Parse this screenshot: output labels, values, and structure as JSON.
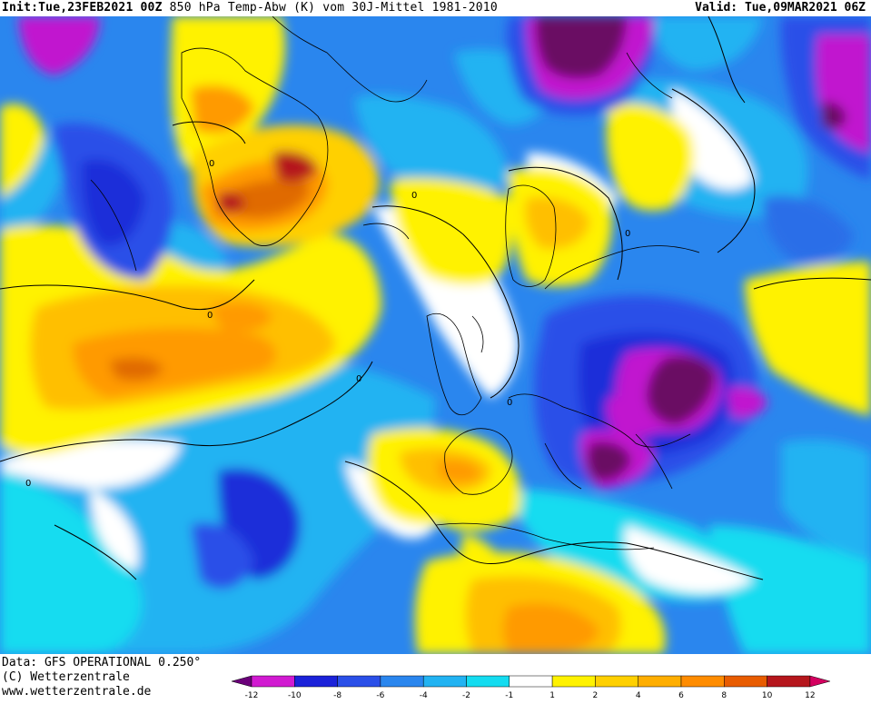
{
  "header": {
    "init_label": "Init:",
    "init_value": "Tue,23FEB2021 00Z",
    "product": "850 hPa Temp-Abw (K) vom 30J-Mittel 1981-2010",
    "valid_label": "Valid:",
    "valid_value": "Tue,09MAR2021 06Z"
  },
  "footer": {
    "data_source": "Data: GFS OPERATIONAL 0.250°",
    "copyright": "(C) Wetterzentrale",
    "website": "www.wetterzentrale.de"
  },
  "legend": {
    "ticks": [
      "-12",
      "-10",
      "-8",
      "-6",
      "-4",
      "-2",
      "-1",
      "1",
      "2",
      "4",
      "6",
      "8",
      "10",
      "12"
    ],
    "colors": [
      "#d11ad1",
      "#1b22d9",
      "#2a4fe8",
      "#2a86ee",
      "#22b3f2",
      "#14dcf0",
      "#ffffff",
      "#fff200",
      "#ffd000",
      "#ffae00",
      "#ff8c00",
      "#e85c00",
      "#b5161c"
    ],
    "low_end_color": "#6b007a",
    "high_end_color": "#d40060"
  },
  "colors": {
    "very_cold": "#6b0a63",
    "cold_magenta": "#c114cf",
    "cold_blue": "#1b2fd9",
    "mid_blue": "#2a6ee8",
    "light_blue": "#22b3f2",
    "cyan": "#14dcf0",
    "neutral": "#ffffff",
    "yellow": "#ffe600",
    "gold": "#ffbf00",
    "orange": "#ff9a00",
    "dark_orange": "#e06a00",
    "red": "#b5161c",
    "coastline": "#000000"
  },
  "map_labels": {
    "zero_contour": "0"
  }
}
